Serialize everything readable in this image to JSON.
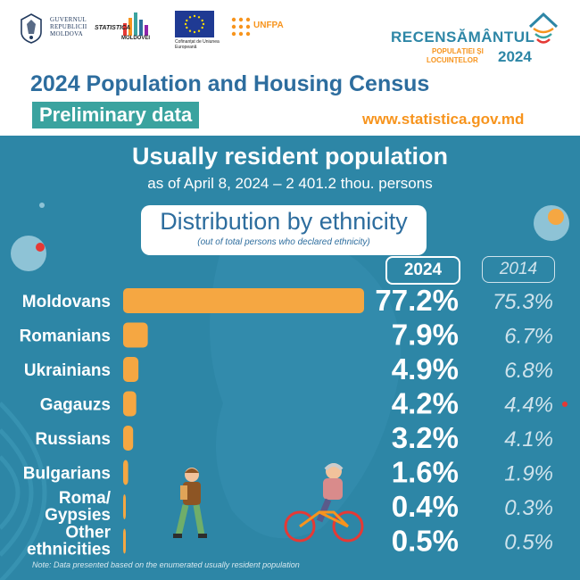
{
  "header": {
    "gov_lines": [
      "GUVERNUL",
      "REPUBLICII",
      "MOLDOVA"
    ],
    "stat_logo": {
      "top": "STATISTICA",
      "bottom": "MOLDOVEI"
    },
    "eu_caption": "Cofinanțat de Uniunea Europeană",
    "unfpa": "UNFPA",
    "census_brand": {
      "title": "RECENSĂMÂNTUL",
      "sub1": "POPULAȚIEI ȘI",
      "sub2": "LOCUINȚELOR",
      "year": "2024"
    },
    "title": "2024 Population and Housing Census",
    "badge": "Preliminary data",
    "website": "www.statistica.gov.md"
  },
  "main": {
    "heading": "Usually resident population",
    "subheading": "as of April 8, 2024 – 2 401.2 thou. persons",
    "dist_title": "Distribution by ethnicity",
    "dist_note": "(out of total persons who declared ethnicity)",
    "note": "Note: Data presented based on the enumerated usually resident population"
  },
  "colors": {
    "bar": "#f5a742",
    "background": "#2d86a6",
    "accent": "#f7941d",
    "teal": "#3aa39f"
  },
  "chart_data": {
    "type": "bar",
    "orientation": "horizontal",
    "categories": [
      "Moldovans",
      "Romanians",
      "Ukrainians",
      "Gagauzs",
      "Russians",
      "Bulgarians",
      "Roma/ Gypsies",
      "Other ethnicities"
    ],
    "series": [
      {
        "name": "2024",
        "values": [
          77.2,
          7.9,
          4.9,
          4.2,
          3.2,
          1.6,
          0.4,
          0.5
        ],
        "labels": [
          "77.2%",
          "7.9%",
          "4.9%",
          "4.2%",
          "3.2%",
          "1.6%",
          "0.4%",
          "0.5%"
        ]
      },
      {
        "name": "2014",
        "values": [
          75.3,
          6.7,
          6.8,
          4.4,
          4.1,
          1.9,
          0.3,
          0.5
        ],
        "labels": [
          "75.3%",
          "6.7%",
          "6.8%",
          "4.4%",
          "4.1%",
          "1.9%",
          "0.3%",
          "0.5%"
        ]
      }
    ],
    "unit": "%",
    "bars_drawn_for": "2024"
  }
}
